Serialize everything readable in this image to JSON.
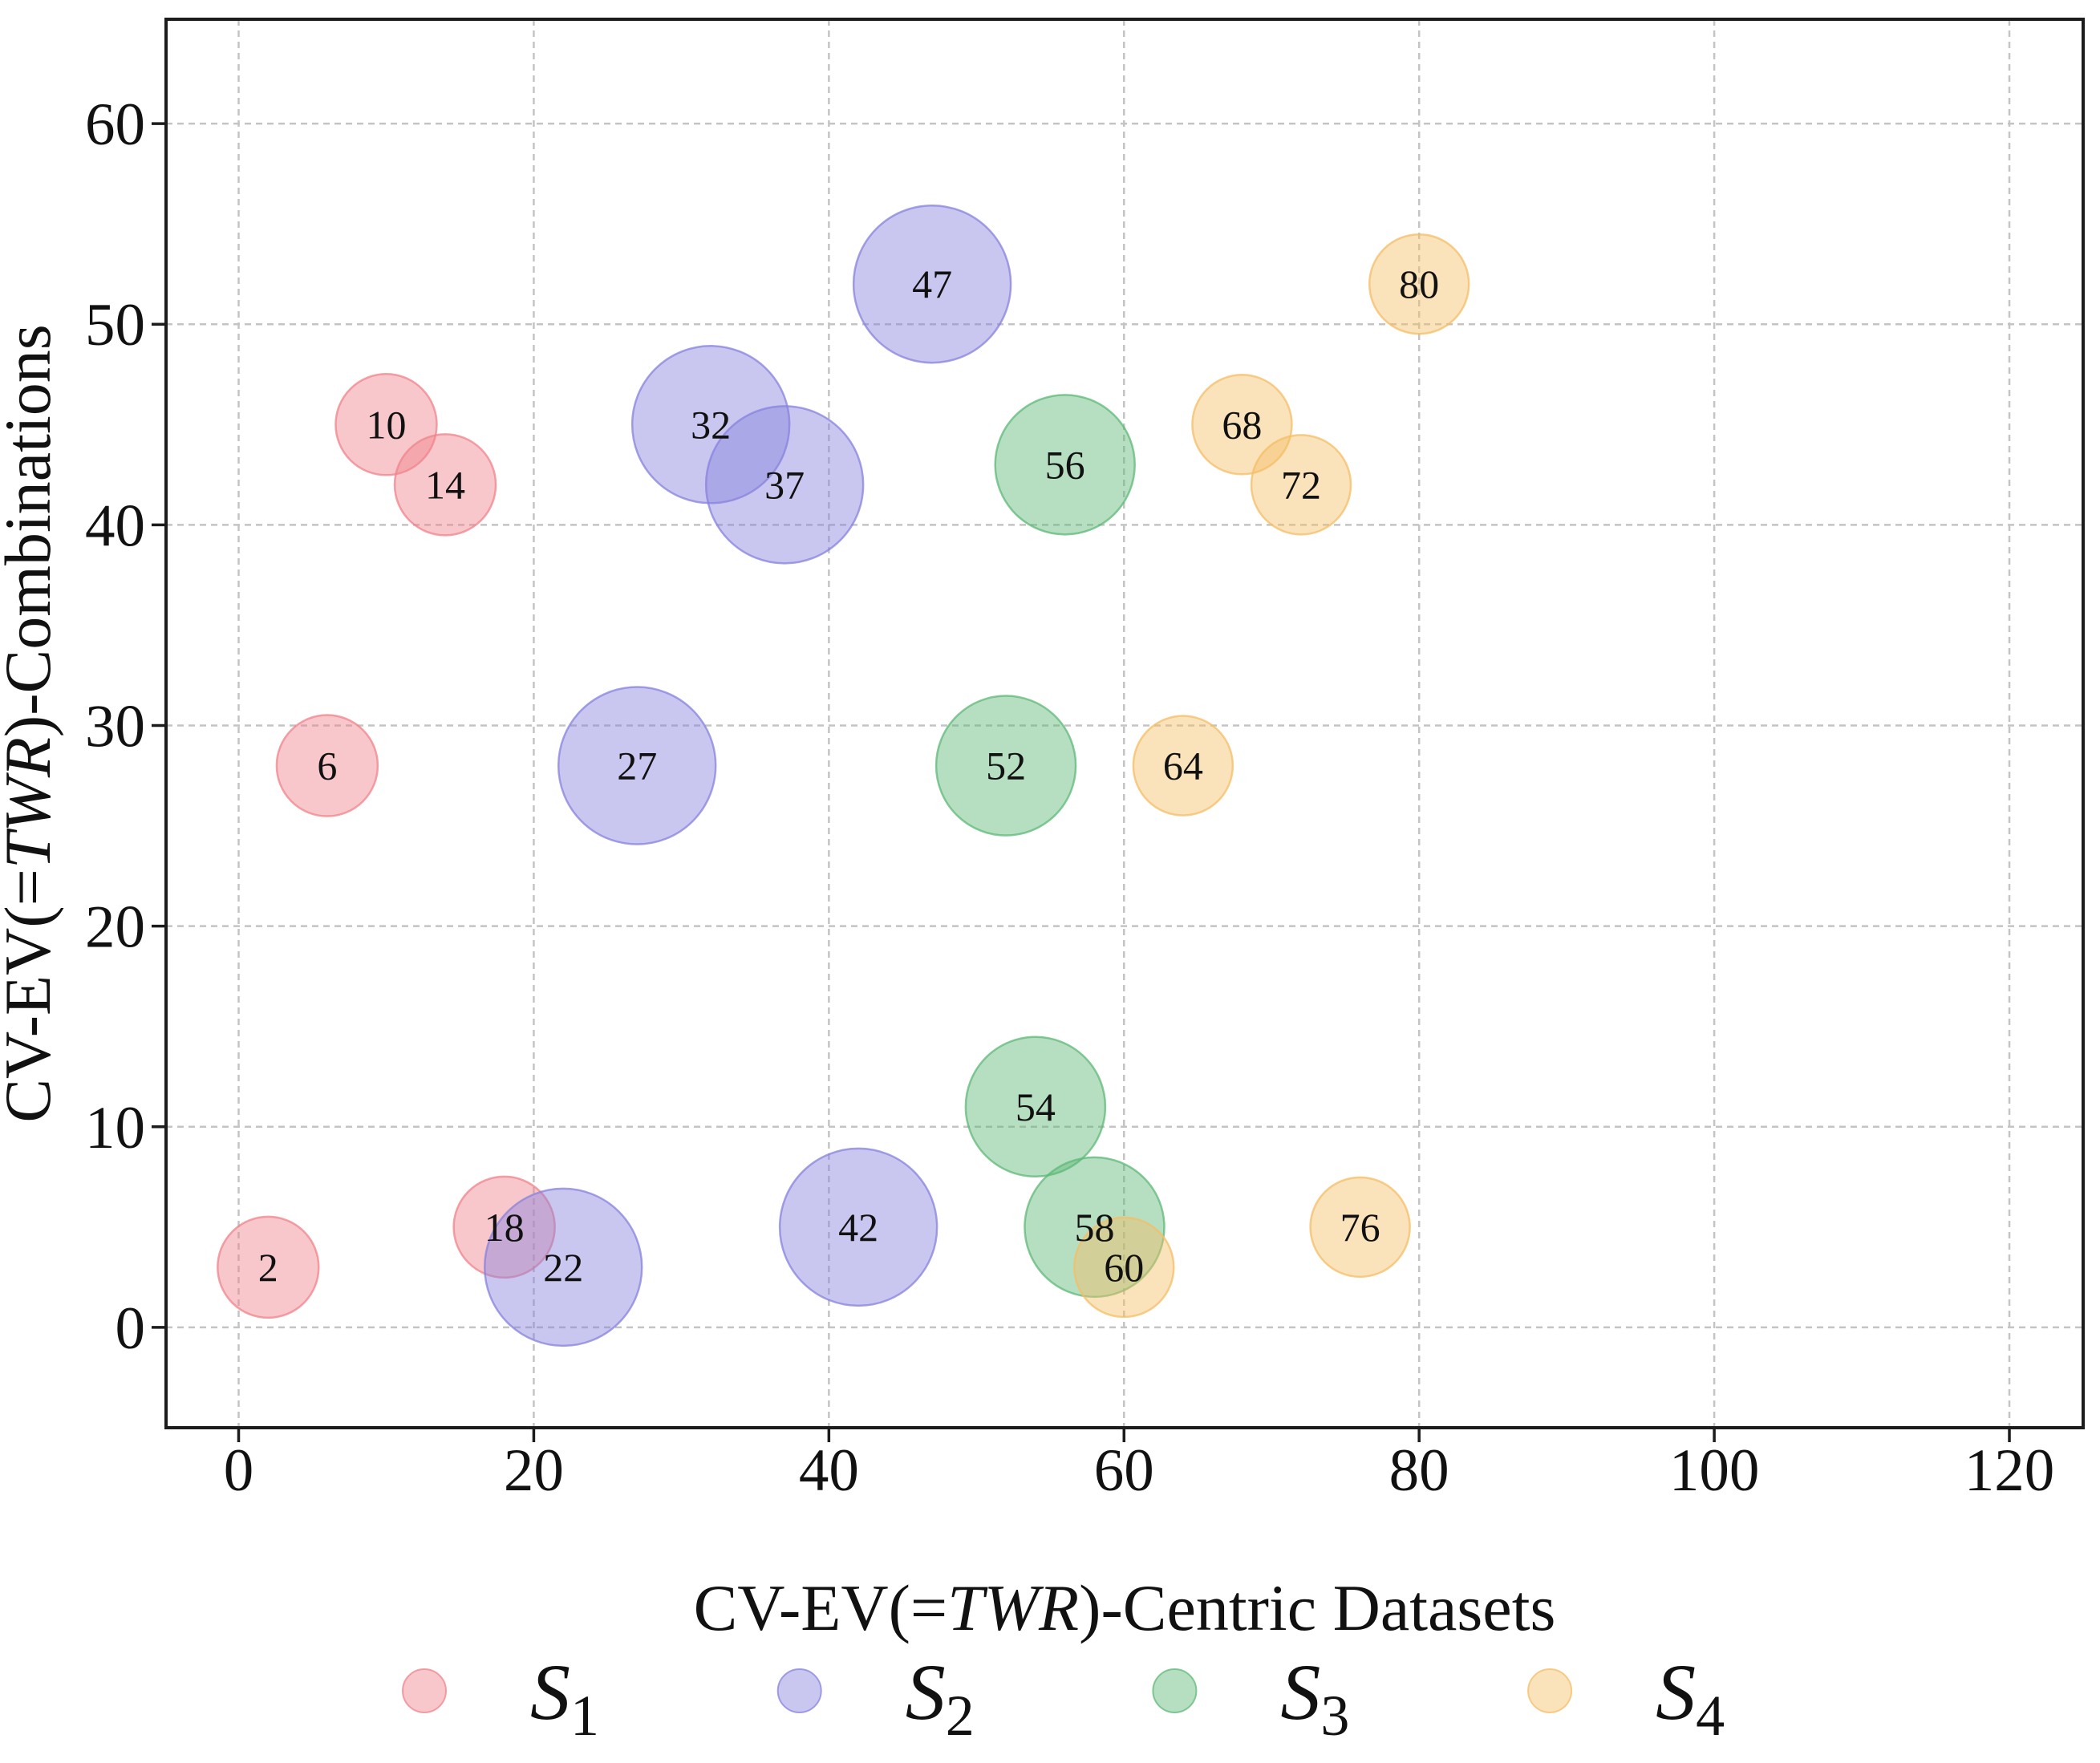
{
  "chart_data": {
    "type": "scatter",
    "title": "",
    "xlabel": {
      "pre": "CV-EV(=",
      "italic": "TWR",
      "post": ")-Centric Datasets"
    },
    "ylabel": {
      "pre": "CV-EV(=",
      "italic": "TWR",
      "post": ")-Combinations"
    },
    "x_ticks": [
      "0",
      "20",
      "40",
      "60",
      "80",
      "100",
      "120"
    ],
    "x_tick_values": [
      0,
      20,
      40,
      60,
      80,
      100,
      120
    ],
    "y_ticks": [
      "0",
      "10",
      "20",
      "30",
      "40",
      "50",
      "60"
    ],
    "y_tick_values": [
      0,
      10,
      20,
      30,
      40,
      50,
      60
    ],
    "xlim": [
      -4.92,
      125.0
    ],
    "ylim": [
      -5.0,
      65.2
    ],
    "grid": true,
    "grid_color": "#c4c4c4",
    "frame_color": "#1c1c1c",
    "background": "#ffffff",
    "legend_position": "bottom",
    "series": [
      {
        "name": "S",
        "sub": "1",
        "color": "#f0838b",
        "fill_alpha": 0.45,
        "radius_px": 63,
        "points": [
          {
            "x": 2,
            "y": 3,
            "label": "2"
          },
          {
            "x": 6,
            "y": 28,
            "label": "6"
          },
          {
            "x": 10,
            "y": 45,
            "label": "10"
          },
          {
            "x": 14,
            "y": 42,
            "label": "14"
          },
          {
            "x": 18,
            "y": 5,
            "label": "18"
          }
        ]
      },
      {
        "name": "S",
        "sub": "2",
        "color": "#8782dd",
        "fill_alpha": 0.45,
        "radius_px": 98,
        "points": [
          {
            "x": 22,
            "y": 3,
            "label": "22"
          },
          {
            "x": 27,
            "y": 28,
            "label": "27"
          },
          {
            "x": 32,
            "y": 45,
            "label": "32"
          },
          {
            "x": 37,
            "y": 42,
            "label": "37"
          },
          {
            "x": 42,
            "y": 5,
            "label": "42"
          },
          {
            "x": 47,
            "y": 52,
            "label": "47"
          }
        ]
      },
      {
        "name": "S",
        "sub": "3",
        "color": "#5db877",
        "fill_alpha": 0.45,
        "radius_px": 87,
        "points": [
          {
            "x": 52,
            "y": 28,
            "label": "52"
          },
          {
            "x": 54,
            "y": 11,
            "label": "54"
          },
          {
            "x": 56,
            "y": 43,
            "label": "56"
          },
          {
            "x": 58,
            "y": 5,
            "label": "58"
          }
        ]
      },
      {
        "name": "S",
        "sub": "4",
        "color": "#f4be65",
        "fill_alpha": 0.45,
        "radius_px": 62,
        "points": [
          {
            "x": 60,
            "y": 3,
            "label": "60"
          },
          {
            "x": 64,
            "y": 28,
            "label": "64"
          },
          {
            "x": 68,
            "y": 45,
            "label": "68"
          },
          {
            "x": 72,
            "y": 42,
            "label": "72"
          },
          {
            "x": 76,
            "y": 5,
            "label": "76"
          },
          {
            "x": 80,
            "y": 52,
            "label": "80"
          }
        ]
      }
    ]
  }
}
